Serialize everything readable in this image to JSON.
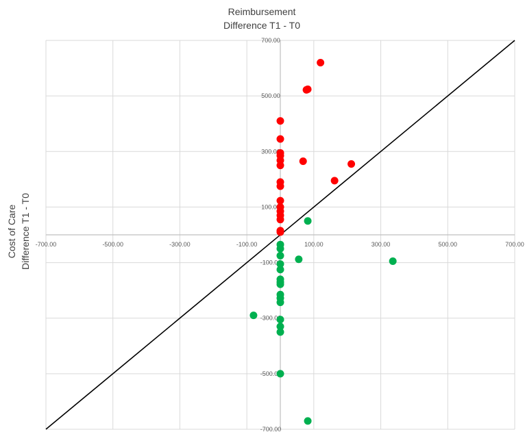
{
  "chart_data": {
    "type": "scatter",
    "title": [
      "Reimbursement",
      "Difference T1 - T0"
    ],
    "ylabel": [
      "Cost of Care",
      "Difference T1 - T0"
    ],
    "xlim": [
      -700,
      700
    ],
    "ylim": [
      -700,
      700
    ],
    "grid": true,
    "xticks": [
      "-700.00",
      "-500.00",
      "-300.00",
      "-100.00",
      "100.00",
      "300.00",
      "500.00",
      "700.00"
    ],
    "yticks": [
      "700.00",
      "500.00",
      "300.00",
      "100.00",
      "-100.00",
      "-300.00",
      "-500.00",
      "-700.00"
    ],
    "reference_line": {
      "x": [
        -700,
        700
      ],
      "y": [
        -700,
        700
      ],
      "color": "#000000"
    },
    "series": [
      {
        "color": "#ff0000",
        "points": [
          [
            120,
            620
          ],
          [
            82,
            524
          ],
          [
            78,
            522
          ],
          [
            0,
            410
          ],
          [
            0,
            345
          ],
          [
            0,
            295
          ],
          [
            0,
            285
          ],
          [
            0,
            268
          ],
          [
            0,
            250
          ],
          [
            68,
            265
          ],
          [
            212,
            255
          ],
          [
            162,
            195
          ],
          [
            0,
            190
          ],
          [
            0,
            175
          ],
          [
            0,
            123
          ],
          [
            0,
            100
          ],
          [
            0,
            85
          ],
          [
            0,
            70
          ],
          [
            0,
            55
          ],
          [
            0,
            15
          ],
          [
            0,
            10
          ]
        ]
      },
      {
        "color": "#00b050",
        "points": [
          [
            82,
            50
          ],
          [
            0,
            -35
          ],
          [
            0,
            -50
          ],
          [
            0,
            -75
          ],
          [
            55,
            -88
          ],
          [
            336,
            -95
          ],
          [
            0,
            -105
          ],
          [
            0,
            -125
          ],
          [
            0,
            -160
          ],
          [
            0,
            -170
          ],
          [
            0,
            -178
          ],
          [
            0,
            -215
          ],
          [
            0,
            -228
          ],
          [
            0,
            -243
          ],
          [
            -80,
            -290
          ],
          [
            0,
            -305
          ],
          [
            0,
            -330
          ],
          [
            0,
            -350
          ],
          [
            0,
            -500
          ],
          [
            82,
            -670
          ]
        ]
      }
    ]
  }
}
